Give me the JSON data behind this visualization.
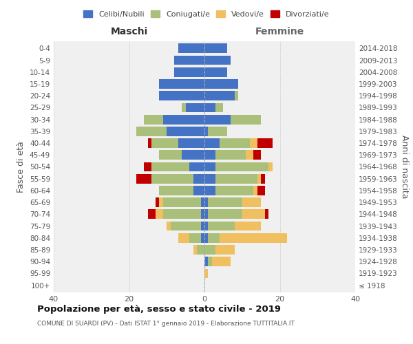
{
  "age_groups": [
    "100+",
    "95-99",
    "90-94",
    "85-89",
    "80-84",
    "75-79",
    "70-74",
    "65-69",
    "60-64",
    "55-59",
    "50-54",
    "45-49",
    "40-44",
    "35-39",
    "30-34",
    "25-29",
    "20-24",
    "15-19",
    "10-14",
    "5-9",
    "0-4"
  ],
  "birth_years": [
    "≤ 1918",
    "1919-1923",
    "1924-1928",
    "1929-1933",
    "1934-1938",
    "1939-1943",
    "1944-1948",
    "1949-1953",
    "1954-1958",
    "1959-1963",
    "1964-1968",
    "1969-1973",
    "1974-1978",
    "1979-1983",
    "1984-1988",
    "1989-1993",
    "1994-1998",
    "1999-2003",
    "2004-2008",
    "2009-2013",
    "2014-2018"
  ],
  "maschi": {
    "celibi": [
      0,
      0,
      0,
      0,
      1,
      1,
      1,
      1,
      3,
      3,
      4,
      6,
      7,
      10,
      11,
      5,
      12,
      12,
      8,
      8,
      7
    ],
    "coniugati": [
      0,
      0,
      0,
      2,
      3,
      8,
      10,
      10,
      9,
      11,
      10,
      6,
      7,
      8,
      5,
      1,
      0,
      0,
      0,
      0,
      0
    ],
    "vedovi": [
      0,
      0,
      0,
      1,
      3,
      1,
      2,
      1,
      0,
      0,
      0,
      0,
      0,
      0,
      0,
      0,
      0,
      0,
      0,
      0,
      0
    ],
    "divorziati": [
      0,
      0,
      0,
      0,
      0,
      0,
      2,
      1,
      0,
      4,
      2,
      0,
      1,
      0,
      0,
      0,
      0,
      0,
      0,
      0,
      0
    ]
  },
  "femmine": {
    "nubili": [
      0,
      0,
      1,
      0,
      1,
      1,
      1,
      1,
      3,
      3,
      3,
      3,
      4,
      1,
      7,
      3,
      8,
      9,
      6,
      7,
      6
    ],
    "coniugate": [
      0,
      0,
      1,
      3,
      3,
      7,
      9,
      9,
      10,
      11,
      14,
      8,
      8,
      5,
      8,
      2,
      1,
      0,
      0,
      0,
      0
    ],
    "vedove": [
      0,
      1,
      5,
      5,
      18,
      7,
      6,
      5,
      1,
      1,
      1,
      2,
      2,
      0,
      0,
      0,
      0,
      0,
      0,
      0,
      0
    ],
    "divorziate": [
      0,
      0,
      0,
      0,
      0,
      0,
      1,
      0,
      2,
      1,
      0,
      2,
      4,
      0,
      0,
      0,
      0,
      0,
      0,
      0,
      0
    ]
  },
  "colors": {
    "celibi_nubili": "#4472C4",
    "coniugati": "#AABF7A",
    "vedovi": "#F0C060",
    "divorziati": "#C00000"
  },
  "xlim": 40,
  "title": "Popolazione per età, sesso e stato civile - 2019",
  "subtitle": "COMUNE DI SUARDI (PV) - Dati ISTAT 1° gennaio 2019 - Elaborazione TUTTITALIA.IT",
  "ylabel_left": "Fasce di età",
  "ylabel_right": "Anni di nascita",
  "xlabel_left": "Maschi",
  "xlabel_right": "Femmine",
  "background_color": "#ffffff",
  "grid_color": "#cccccc",
  "face_color": "#f0f0f0"
}
